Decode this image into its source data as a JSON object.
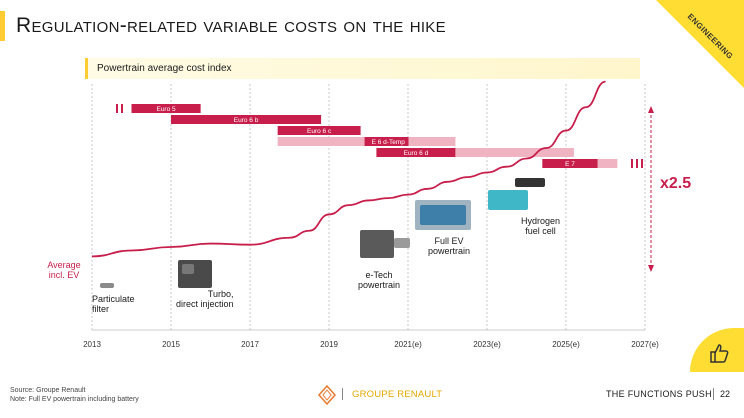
{
  "title": "Regulation-related variable costs on the hike",
  "corner_tag": "ENGINEERING",
  "legend_label": "Powertrain average cost index",
  "multiplier": "x2.5",
  "captions": {
    "particulate": "Particulate\nfilter",
    "turbo": "Turbo,\ndirect injection",
    "etech": "e-Tech\npowertrain",
    "fullev": "Full EV\npowertrain",
    "hydrogen": "Hydrogen\nfuel cell"
  },
  "chart_data": {
    "type": "line",
    "title": "Powertrain average cost index",
    "xlabel": "",
    "ylabel": "",
    "series_label": "Average\nincl. EV",
    "x_ticks": [
      "2013",
      "2015",
      "2017",
      "2019",
      "2021(e)",
      "2023(e)",
      "2025(e)",
      "2027(e)"
    ],
    "xlim": [
      2013,
      2027
    ],
    "ylim": [
      0.9,
      2.6
    ],
    "x": [
      2013,
      2014,
      2015,
      2016,
      2017,
      2018,
      2018.5,
      2019,
      2019.5,
      2020,
      2020.5,
      2021,
      2021.5,
      2022,
      2022.5,
      2023,
      2023.5,
      2024,
      2024.5,
      2025,
      2025.5,
      2026
    ],
    "y": [
      1.0,
      1.05,
      1.08,
      1.11,
      1.1,
      1.16,
      1.22,
      1.36,
      1.44,
      1.48,
      1.5,
      1.53,
      1.58,
      1.64,
      1.68,
      1.72,
      1.77,
      1.84,
      1.93,
      2.08,
      2.28,
      2.5
    ],
    "annotation": "x2.5",
    "norms": [
      {
        "label": "Euro 5",
        "start": 2014,
        "solid_end": 2015.75,
        "fade_end": 2015.75,
        "row": 3
      },
      {
        "label": "Euro 6 b",
        "start": 2015.0,
        "solid_end": 2018.8,
        "fade_end": 2018.8,
        "row": 2
      },
      {
        "label": "Euro 6 c",
        "start": 2017.7,
        "solid_end": 2019.8,
        "fade_end": 2019.8,
        "row": 1
      },
      {
        "label": "E 6 d-Temp",
        "start": 2017.7,
        "solid_end": 2020.0,
        "fade_end": 2022.2,
        "row": 0
      },
      {
        "label": "Euro 6 d",
        "start": 2020.2,
        "solid_end": 2022.2,
        "fade_end": 2025.2,
        "row": -1
      },
      {
        "label": "E 7",
        "start": 2024.4,
        "solid_end": 2025.8,
        "fade_end": 2026.3,
        "row": -2
      }
    ]
  },
  "footer": {
    "source": "Source: Groupe Renault",
    "note": "Note: Full EV powertrain including battery",
    "brand": "GROUPE RENAULT",
    "section": "THE FUNCTIONS PUSH",
    "page": "22"
  },
  "colors": {
    "accent": "#c81e4b",
    "accent_light": "#f0b3c2",
    "yellow": "#ffdd33"
  }
}
